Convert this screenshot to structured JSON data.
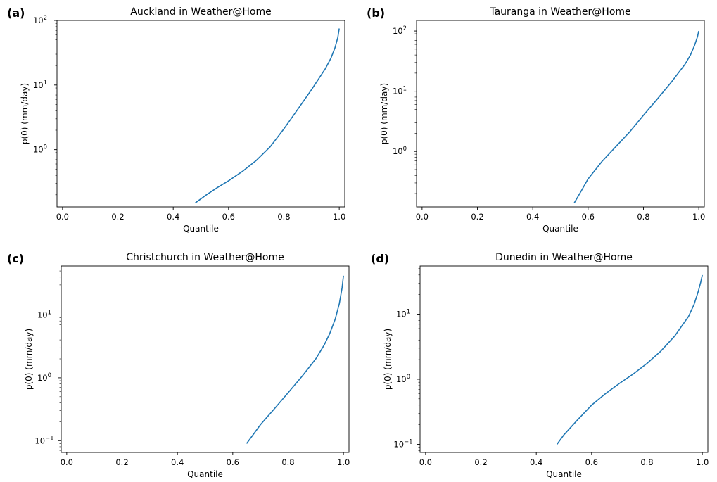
{
  "colors": {
    "line": "#1f77b4",
    "axes": "#000000",
    "background": "#ffffff"
  },
  "chart_data": [
    {
      "type": "line",
      "panel_letter": "(a)",
      "title": "Auckland in Weather@Home",
      "xlabel": "Quantile",
      "ylabel": "p(0) (mm/day)",
      "yscale": "log",
      "xlim": [
        -0.02,
        1.02
      ],
      "ylim": [
        0.13,
        100
      ],
      "xticks": [
        0.0,
        0.2,
        0.4,
        0.6,
        0.8,
        1.0
      ],
      "xtick_labels": [
        "0.0",
        "0.2",
        "0.4",
        "0.6",
        "0.8",
        "1.0"
      ],
      "yticks": [
        1,
        10,
        100
      ],
      "ytick_labels": [
        {
          "base": "10",
          "exp": "0"
        },
        {
          "base": "10",
          "exp": "1"
        },
        {
          "base": "10",
          "exp": "2"
        }
      ],
      "grid": false,
      "series": [
        {
          "x": [
            0.48,
            0.52,
            0.56,
            0.6,
            0.65,
            0.7,
            0.75,
            0.8,
            0.85,
            0.9,
            0.95,
            0.97,
            0.985,
            0.995,
            1.0
          ],
          "y": [
            0.15,
            0.2,
            0.26,
            0.33,
            0.46,
            0.68,
            1.1,
            2.1,
            4.2,
            8.5,
            18,
            26,
            38,
            55,
            75
          ]
        }
      ]
    },
    {
      "type": "line",
      "panel_letter": "(b)",
      "title": "Tauranga in Weather@Home",
      "xlabel": "Quantile",
      "ylabel": "p(0) (mm/day)",
      "yscale": "log",
      "xlim": [
        -0.02,
        1.02
      ],
      "ylim": [
        0.12,
        150
      ],
      "xticks": [
        0.0,
        0.2,
        0.4,
        0.6,
        0.8,
        1.0
      ],
      "xtick_labels": [
        "0.0",
        "0.2",
        "0.4",
        "0.6",
        "0.8",
        "1.0"
      ],
      "yticks": [
        1,
        10,
        100
      ],
      "ytick_labels": [
        {
          "base": "10",
          "exp": "0"
        },
        {
          "base": "10",
          "exp": "1"
        },
        {
          "base": "10",
          "exp": "2"
        }
      ],
      "grid": false,
      "series": [
        {
          "x": [
            0.55,
            0.575,
            0.6,
            0.65,
            0.7,
            0.75,
            0.8,
            0.85,
            0.9,
            0.95,
            0.97,
            0.985,
            0.995,
            1.0
          ],
          "y": [
            0.14,
            0.22,
            0.35,
            0.68,
            1.2,
            2.1,
            4.0,
            7.4,
            14,
            28,
            40,
            58,
            80,
            100
          ]
        }
      ]
    },
    {
      "type": "line",
      "panel_letter": "(c)",
      "title": "Christchurch in Weather@Home",
      "xlabel": "Quantile",
      "ylabel": "p(0) (mm/day)",
      "yscale": "log",
      "xlim": [
        -0.02,
        1.02
      ],
      "ylim": [
        0.065,
        60
      ],
      "xticks": [
        0.0,
        0.2,
        0.4,
        0.6,
        0.8,
        1.0
      ],
      "xtick_labels": [
        "0.0",
        "0.2",
        "0.4",
        "0.6",
        "0.8",
        "1.0"
      ],
      "yticks": [
        0.1,
        1,
        10
      ],
      "ytick_labels": [
        {
          "base": "10",
          "exp": "−1"
        },
        {
          "base": "10",
          "exp": "0"
        },
        {
          "base": "10",
          "exp": "1"
        }
      ],
      "grid": false,
      "series": [
        {
          "x": [
            0.65,
            0.7,
            0.75,
            0.8,
            0.85,
            0.9,
            0.93,
            0.95,
            0.97,
            0.985,
            0.995,
            1.0
          ],
          "y": [
            0.09,
            0.18,
            0.32,
            0.58,
            1.05,
            2.0,
            3.3,
            5.0,
            8.5,
            15,
            27,
            42
          ]
        }
      ]
    },
    {
      "type": "line",
      "panel_letter": "(d)",
      "title": "Dunedin in Weather@Home",
      "xlabel": "Quantile",
      "ylabel": "p(0) (mm/day)",
      "yscale": "log",
      "xlim": [
        -0.02,
        1.02
      ],
      "ylim": [
        0.075,
        55
      ],
      "xticks": [
        0.0,
        0.2,
        0.4,
        0.6,
        0.8,
        1.0
      ],
      "xtick_labels": [
        "0.0",
        "0.2",
        "0.4",
        "0.6",
        "0.8",
        "1.0"
      ],
      "yticks": [
        0.1,
        1,
        10
      ],
      "ytick_labels": [
        {
          "base": "10",
          "exp": "−1"
        },
        {
          "base": "10",
          "exp": "0"
        },
        {
          "base": "10",
          "exp": "1"
        }
      ],
      "grid": false,
      "series": [
        {
          "x": [
            0.475,
            0.5,
            0.55,
            0.6,
            0.65,
            0.7,
            0.75,
            0.8,
            0.85,
            0.9,
            0.95,
            0.97,
            0.985,
            0.995,
            1.0
          ],
          "y": [
            0.1,
            0.14,
            0.24,
            0.4,
            0.6,
            0.86,
            1.2,
            1.75,
            2.7,
            4.6,
            9.2,
            14,
            22,
            32,
            40
          ]
        }
      ]
    }
  ]
}
